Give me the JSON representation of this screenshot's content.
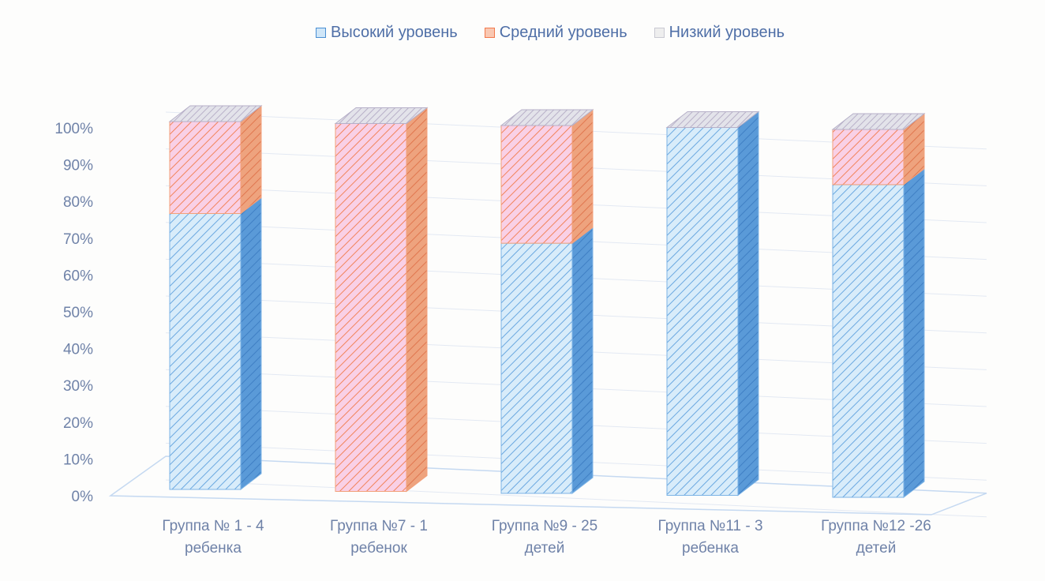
{
  "colors": {
    "high": "#4a8fd3",
    "mid": "#f2784b",
    "mid_pink": "#f7a7e6",
    "low": "#c9c9d2",
    "text": "#6f82a8"
  },
  "legend": [
    {
      "label": "Высокий уровень",
      "key": "high"
    },
    {
      "label": "Средний уровень",
      "key": "mid"
    },
    {
      "label": "Низкий уровень",
      "key": "low"
    }
  ],
  "chart_data": {
    "type": "bar",
    "stacked": true,
    "three_d": true,
    "title": "",
    "xlabel": "",
    "ylabel": "",
    "ylim": [
      0,
      100
    ],
    "y_ticks": [
      "0%",
      "10%",
      "20%",
      "30%",
      "40%",
      "50%",
      "60%",
      "70%",
      "80%",
      "90%",
      "100%"
    ],
    "categories": [
      [
        "Группа № 1 - 4",
        "ребенка"
      ],
      [
        "Группа №7 - 1",
        "ребенок"
      ],
      [
        "Группа №9 - 25",
        "детей"
      ],
      [
        "Группа №11 - 3",
        "ребенка"
      ],
      [
        "Группа №12 -26",
        "детей"
      ]
    ],
    "series": [
      {
        "name": "Высокий уровень",
        "values": [
          75,
          0,
          68,
          100,
          85
        ]
      },
      {
        "name": "Средний уровень",
        "values": [
          25,
          100,
          32,
          0,
          15
        ]
      },
      {
        "name": "Низкий уровень",
        "values": [
          0,
          0,
          0,
          0,
          0
        ]
      }
    ],
    "legend_position": "top",
    "grid": true
  }
}
